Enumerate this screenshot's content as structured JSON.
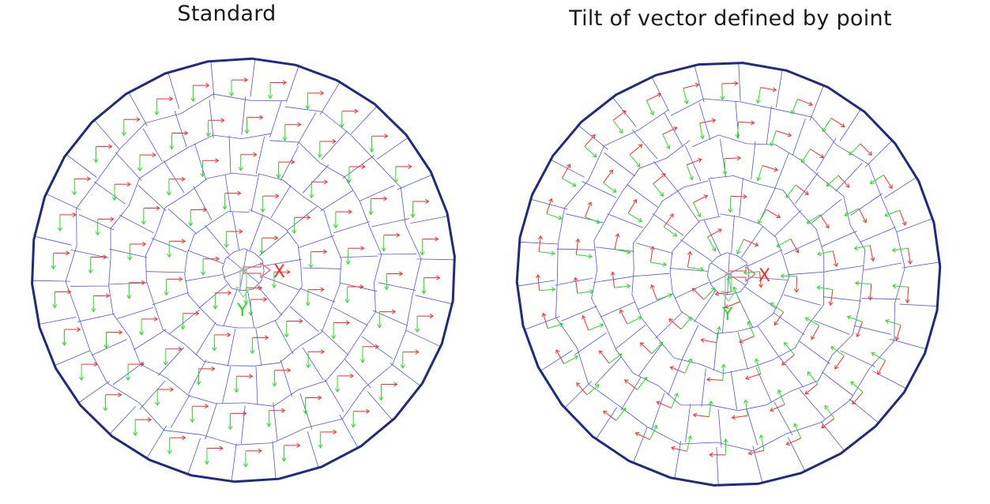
{
  "panels": [
    {
      "title": "Standard",
      "mode": "standard"
    },
    {
      "title": "Tilt of vector defined by point",
      "mode": "tilt"
    }
  ],
  "colors": {
    "outline": "#1f2a80",
    "mesh": "#4f57d6",
    "x_axis": "#ff2a2a",
    "y_axis": "#22dd22",
    "origin_x_arrow": "#e86060",
    "origin_y_arrow": "#7fd77f"
  },
  "mesh": {
    "ring_cells": [
      1,
      6,
      12,
      18,
      24,
      30
    ],
    "element_count": 91
  },
  "axis_markers": {
    "x": "X",
    "y": "Y"
  }
}
